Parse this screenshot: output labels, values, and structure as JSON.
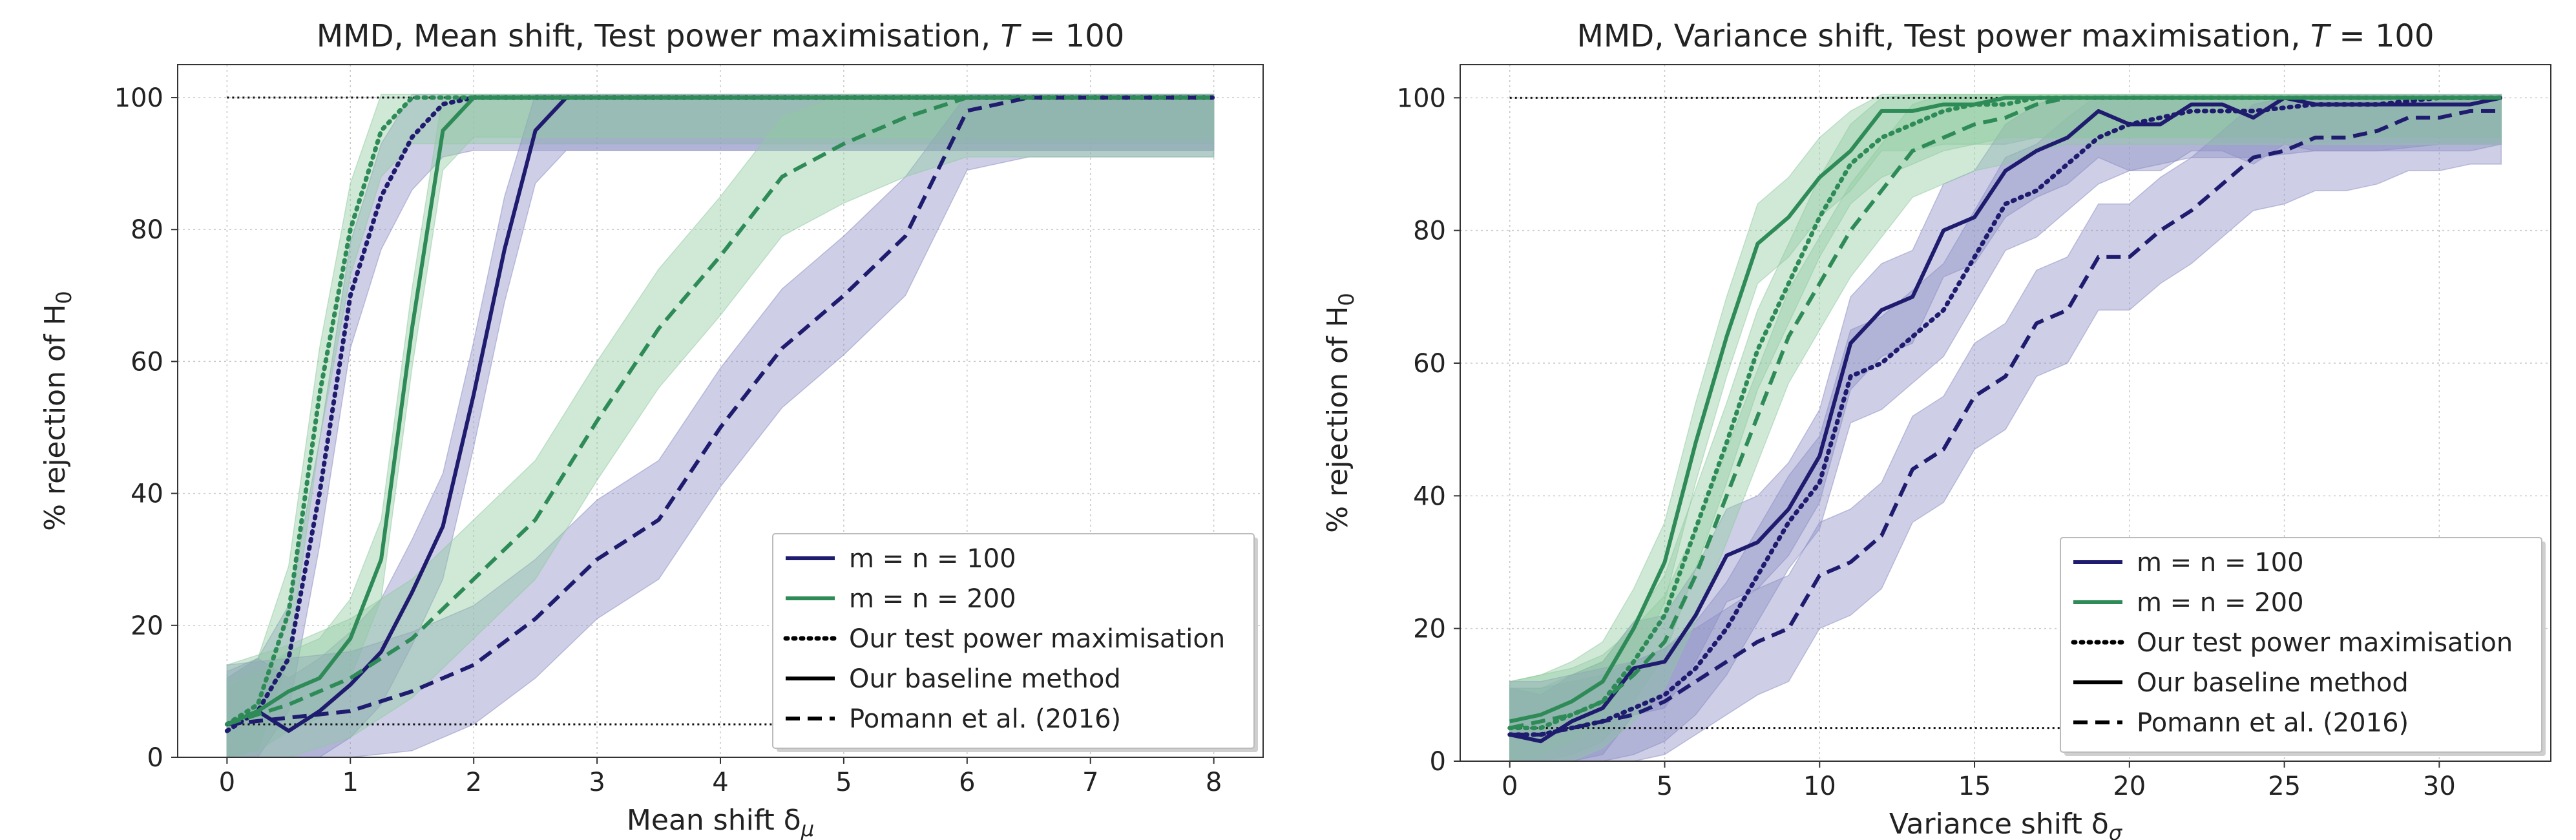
{
  "colors": {
    "navy": "#1f1b6e",
    "green": "#2e8b57",
    "navy_band": "#8a8cc4",
    "green_band": "#8fcaa0"
  },
  "chart_data": [
    {
      "type": "line",
      "title": "MMD, Mean shift, Test power maximisation, T = 100",
      "title_main": "MMD, Mean shift, Test power maximisation, ",
      "title_var": "T",
      "title_eq": " = 100",
      "xlabel": "Mean shift δ",
      "xlabel_sub": "μ",
      "ylabel": "% rejection of H",
      "ylabel_sub": "0",
      "xlim": [
        -0.4,
        8.4
      ],
      "ylim": [
        0,
        105
      ],
      "xticks": [
        0,
        1,
        2,
        3,
        4,
        5,
        6,
        7,
        8
      ],
      "yticks": [
        0,
        20,
        40,
        60,
        80,
        100
      ],
      "reference_lines": [
        100,
        5
      ],
      "legend": [
        {
          "label": "m = n = 100",
          "style": "solid",
          "color": "navy"
        },
        {
          "label": "m = n = 200",
          "style": "solid",
          "color": "green"
        },
        {
          "label": "Our test power maximisation",
          "style": "dotted",
          "color": "black"
        },
        {
          "label": "Our baseline method",
          "style": "solid",
          "color": "black"
        },
        {
          "label": "Pomann et al. (2016)",
          "style": "dashed",
          "color": "black"
        }
      ],
      "series": [
        {
          "name": "m = n = 100, Our test power maximisation",
          "color": "navy",
          "style": "dotted",
          "x": [
            0,
            0.25,
            0.5,
            0.75,
            1,
            1.25,
            1.5,
            1.75,
            2,
            2.5,
            3,
            4,
            5,
            6,
            7,
            8
          ],
          "y": [
            4,
            7,
            15,
            40,
            70,
            85,
            94,
            99,
            100,
            100,
            100,
            100,
            100,
            100,
            100,
            100
          ],
          "band": 8
        },
        {
          "name": "m = n = 200, Our test power maximisation",
          "color": "green",
          "style": "dotted",
          "x": [
            0,
            0.25,
            0.5,
            0.75,
            1,
            1.25,
            1.5,
            1.75,
            2,
            3,
            4,
            5,
            6,
            7,
            8
          ],
          "y": [
            5,
            8,
            22,
            55,
            80,
            95,
            100,
            100,
            100,
            100,
            100,
            100,
            100,
            100,
            100
          ],
          "band": 7
        },
        {
          "name": "m = n = 100, Our baseline method",
          "color": "navy",
          "style": "solid",
          "x": [
            0,
            0.25,
            0.5,
            0.75,
            1,
            1.25,
            1.5,
            1.75,
            2,
            2.25,
            2.5,
            2.75,
            3,
            4,
            5,
            6,
            7,
            8
          ],
          "y": [
            5,
            7,
            4,
            7,
            11,
            16,
            25,
            35,
            55,
            77,
            95,
            100,
            100,
            100,
            100,
            100,
            100,
            100
          ],
          "band": 8
        },
        {
          "name": "m = n = 200, Our baseline method",
          "color": "green",
          "style": "solid",
          "x": [
            0,
            0.25,
            0.5,
            0.75,
            1,
            1.25,
            1.5,
            1.75,
            2,
            3,
            4,
            5,
            6,
            7,
            8
          ],
          "y": [
            5,
            7,
            10,
            12,
            18,
            30,
            65,
            95,
            100,
            100,
            100,
            100,
            100,
            100,
            100
          ],
          "band": 6
        },
        {
          "name": "m = n = 100, Pomann et al. (2016)",
          "color": "navy",
          "style": "dashed",
          "x": [
            0,
            0.5,
            1,
            1.5,
            2,
            2.5,
            3,
            3.5,
            4,
            4.5,
            5,
            5.5,
            6,
            6.5,
            7,
            8
          ],
          "y": [
            5,
            6,
            7,
            10,
            14,
            21,
            30,
            36,
            50,
            62,
            70,
            79,
            98,
            100,
            100,
            100
          ],
          "band": 9
        },
        {
          "name": "m = n = 200, Pomann et al. (2016)",
          "color": "green",
          "style": "dashed",
          "x": [
            0,
            0.5,
            1,
            1.5,
            2,
            2.5,
            3,
            3.5,
            4,
            4.5,
            5,
            5.5,
            6,
            6.5,
            7,
            8
          ],
          "y": [
            5,
            8,
            12,
            18,
            27,
            36,
            51,
            65,
            76,
            88,
            93,
            97,
            100,
            100,
            100,
            100
          ],
          "band": 9
        }
      ]
    },
    {
      "type": "line",
      "title": "MMD, Variance shift, Test power maximisation, T = 100",
      "title_main": "MMD, Variance shift, Test power maximisation, ",
      "title_var": "T",
      "title_eq": " = 100",
      "xlabel": "Variance shift δ",
      "xlabel_sub": "σ",
      "ylabel": "% rejection of H",
      "ylabel_sub": "0",
      "xlim": [
        -1.6,
        33.6
      ],
      "ylim": [
        0,
        105
      ],
      "xticks": [
        0,
        5,
        10,
        15,
        20,
        25,
        30
      ],
      "yticks": [
        0,
        20,
        40,
        60,
        80,
        100
      ],
      "reference_lines": [
        100,
        5
      ],
      "legend": [
        {
          "label": "m = n = 100",
          "style": "solid",
          "color": "navy"
        },
        {
          "label": "m = n = 200",
          "style": "solid",
          "color": "green"
        },
        {
          "label": "Our test power maximisation",
          "style": "dotted",
          "color": "black"
        },
        {
          "label": "Our baseline method",
          "style": "solid",
          "color": "black"
        },
        {
          "label": "Pomann et al. (2016)",
          "style": "dashed",
          "color": "black"
        }
      ],
      "series": [
        {
          "name": "m = n = 100, Our test power maximisation",
          "color": "navy",
          "style": "dotted",
          "x": [
            0,
            1,
            2,
            3,
            4,
            5,
            6,
            7,
            8,
            9,
            10,
            11,
            12,
            13,
            14,
            15,
            16,
            17,
            18,
            19,
            20,
            22,
            24,
            26,
            28,
            30,
            32
          ],
          "y": [
            4,
            4,
            5,
            6,
            8,
            10,
            14,
            20,
            28,
            36,
            42,
            58,
            60,
            64,
            68,
            76,
            84,
            86,
            90,
            94,
            96,
            98,
            98,
            99,
            99,
            100,
            100
          ],
          "band": 7
        },
        {
          "name": "m = n = 200, Our test power maximisation",
          "color": "green",
          "style": "dotted",
          "x": [
            0,
            1,
            2,
            3,
            4,
            5,
            6,
            7,
            8,
            9,
            10,
            11,
            12,
            13,
            14,
            15,
            16,
            17,
            18,
            20,
            25,
            30,
            32
          ],
          "y": [
            5,
            5,
            7,
            9,
            15,
            22,
            35,
            48,
            62,
            72,
            82,
            90,
            94,
            96,
            98,
            99,
            99,
            100,
            100,
            100,
            100,
            100,
            100
          ],
          "band": 6
        },
        {
          "name": "m = n = 100, Our baseline method",
          "color": "navy",
          "style": "solid",
          "x": [
            0,
            1,
            2,
            3,
            4,
            5,
            6,
            7,
            8,
            9,
            10,
            11,
            12,
            13,
            14,
            15,
            16,
            17,
            18,
            19,
            20,
            21,
            22,
            23,
            24,
            25,
            26,
            27,
            28,
            29,
            30,
            31,
            32
          ],
          "y": [
            4,
            3,
            6,
            8,
            14,
            15,
            22,
            31,
            33,
            38,
            46,
            63,
            68,
            70,
            80,
            82,
            89,
            92,
            94,
            98,
            96,
            96,
            99,
            99,
            97,
            100,
            99,
            99,
            99,
            99,
            99,
            99,
            100
          ],
          "band": 7
        },
        {
          "name": "m = n = 200, Our baseline method",
          "color": "green",
          "style": "solid",
          "x": [
            0,
            1,
            2,
            3,
            4,
            5,
            6,
            7,
            8,
            9,
            10,
            11,
            12,
            13,
            14,
            15,
            16,
            18,
            20,
            25,
            30,
            32
          ],
          "y": [
            6,
            7,
            9,
            12,
            20,
            30,
            48,
            64,
            78,
            82,
            88,
            92,
            98,
            98,
            99,
            99,
            100,
            100,
            100,
            100,
            100,
            100
          ],
          "band": 6
        },
        {
          "name": "m = n = 100, Pomann et al. (2016)",
          "color": "navy",
          "style": "dashed",
          "x": [
            0,
            1,
            2,
            3,
            4,
            5,
            6,
            7,
            8,
            9,
            10,
            11,
            12,
            13,
            14,
            15,
            16,
            17,
            18,
            19,
            20,
            21,
            22,
            23,
            24,
            25,
            26,
            27,
            28,
            29,
            30,
            31,
            32
          ],
          "y": [
            4,
            4,
            5,
            6,
            7,
            9,
            12,
            15,
            18,
            20,
            28,
            30,
            34,
            44,
            47,
            55,
            58,
            66,
            68,
            76,
            76,
            80,
            83,
            87,
            91,
            92,
            94,
            94,
            95,
            97,
            97,
            98,
            98
          ],
          "band": 8
        },
        {
          "name": "m = n = 200, Pomann et al. (2016)",
          "color": "green",
          "style": "dashed",
          "x": [
            0,
            1,
            2,
            3,
            4,
            5,
            6,
            7,
            8,
            9,
            10,
            11,
            12,
            13,
            14,
            15,
            16,
            17,
            18,
            20,
            25,
            30,
            32
          ],
          "y": [
            5,
            6,
            7,
            9,
            13,
            18,
            28,
            40,
            52,
            64,
            72,
            80,
            86,
            92,
            94,
            96,
            97,
            99,
            100,
            100,
            100,
            100,
            100
          ],
          "band": 7
        }
      ]
    }
  ]
}
